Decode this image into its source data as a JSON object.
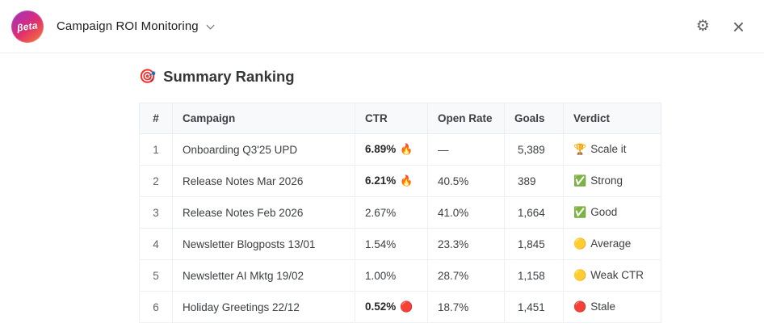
{
  "header": {
    "logo_text": "βeta",
    "title": "Campaign ROI Monitoring",
    "icons": {
      "gear": "⚙",
      "close": "×"
    }
  },
  "main": {
    "heading_icon": "🎯",
    "heading_title": "Summary Ranking"
  },
  "table": {
    "columns": [
      "#",
      "Campaign",
      "CTR",
      "Open Rate",
      "Goals",
      "Verdict"
    ],
    "rows": [
      {
        "rank": "1",
        "campaign": "Onboarding Q3'25 UPD",
        "ctr_value": "6.89%",
        "ctr_icon": "🔥",
        "open_rate": "—",
        "goals": "5,389",
        "verdict_icon": "🏆",
        "verdict_label": "Scale it"
      },
      {
        "rank": "2",
        "campaign": "Release Notes Mar 2026",
        "ctr_value": "6.21%",
        "ctr_icon": "🔥",
        "open_rate": "40.5%",
        "goals": "389",
        "verdict_icon": "✅",
        "verdict_label": "Strong"
      },
      {
        "rank": "3",
        "campaign": "Release Notes Feb 2026",
        "ctr_value": "2.67%",
        "open_rate": "41.0%",
        "goals": "1,664",
        "verdict_icon": "✅",
        "verdict_label": "Good"
      },
      {
        "rank": "4",
        "campaign": "Newsletter Blogposts 13/01",
        "ctr_value": "1.54%",
        "open_rate": "23.3%",
        "goals": "1,845",
        "verdict_icon": "🟡",
        "verdict_label": "Average"
      },
      {
        "rank": "5",
        "campaign": "Newsletter AI Mktg 19/02",
        "ctr_value": "1.00%",
        "open_rate": "28.7%",
        "goals": "1,158",
        "verdict_icon": "🟡",
        "verdict_label": "Weak CTR"
      },
      {
        "rank": "6",
        "campaign": "Holiday Greetings 22/12",
        "ctr_value": "0.52%",
        "ctr_icon": "🔴",
        "open_rate": "18.7%",
        "goals": "1,451",
        "verdict_icon": "🔴",
        "verdict_label": "Stale"
      }
    ]
  },
  "colors": {
    "logo_gradient_start": "#9b36b7",
    "logo_gradient_mid": "#e1306c",
    "logo_gradient_end": "#f2703d",
    "table_header_bg": "#f8f9fa",
    "table_border": "#e9eef2",
    "text_primary": "#3c4043",
    "text_secondary": "#5f6368"
  }
}
